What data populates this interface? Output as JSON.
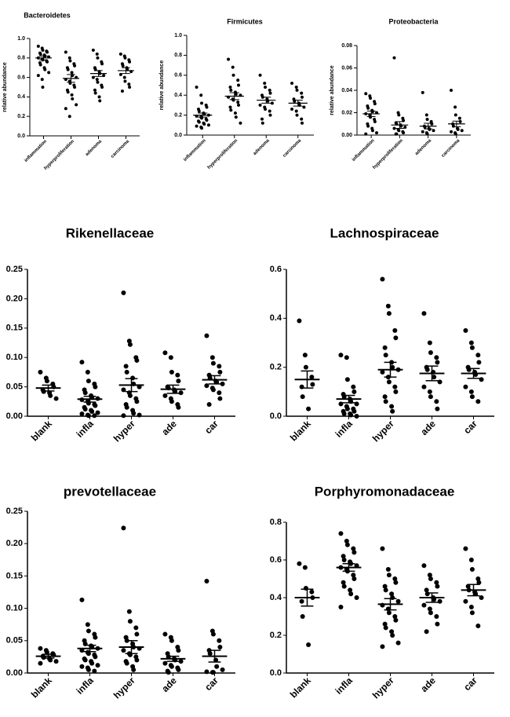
{
  "chart_data": [
    {
      "type": "dot",
      "title": "Bacteroidetes",
      "ylabel": "relative abundance",
      "categories": [
        "inflammation",
        "hyperproliferation",
        "adenoma",
        "carcinoma"
      ],
      "ylim": [
        0,
        1
      ],
      "yticks": [
        {
          "value": 0,
          "label": "0.0"
        },
        0.2,
        0.4,
        0.6,
        0.8,
        {
          "value": 1,
          "label": "1.0"
        }
      ],
      "values": [
        [
          0.92,
          0.9,
          0.88,
          0.87,
          0.86,
          0.85,
          0.84,
          0.83,
          0.82,
          0.81,
          0.8,
          0.79,
          0.78,
          0.77,
          0.76,
          0.75,
          0.73,
          0.7,
          0.68,
          0.65,
          0.62,
          0.58,
          0.5
        ],
        [
          0.86,
          0.8,
          0.77,
          0.74,
          0.72,
          0.7,
          0.68,
          0.65,
          0.62,
          0.6,
          0.58,
          0.56,
          0.54,
          0.52,
          0.5,
          0.47,
          0.45,
          0.42,
          0.38,
          0.32,
          0.28,
          0.2
        ],
        [
          0.88,
          0.84,
          0.8,
          0.76,
          0.74,
          0.7,
          0.68,
          0.66,
          0.64,
          0.62,
          0.6,
          0.58,
          0.55,
          0.52,
          0.5,
          0.47,
          0.44,
          0.4,
          0.36
        ],
        [
          0.84,
          0.82,
          0.8,
          0.78,
          0.76,
          0.74,
          0.72,
          0.7,
          0.68,
          0.66,
          0.63,
          0.6,
          0.56,
          0.53,
          0.5,
          0.46
        ]
      ],
      "means": [
        0.8,
        0.59,
        0.64,
        0.67
      ],
      "sem": [
        0.02,
        0.04,
        0.03,
        0.03
      ]
    },
    {
      "type": "dot",
      "title": "Firmicutes",
      "ylabel": "relative abundance",
      "categories": [
        "inflammation",
        "hyperproliferation",
        "adenoma",
        "carcinoma"
      ],
      "ylim": [
        0,
        1
      ],
      "yticks": [
        {
          "value": 0,
          "label": "0.0"
        },
        0.2,
        0.4,
        0.6,
        0.8,
        {
          "value": 1,
          "label": "1.0"
        }
      ],
      "values": [
        [
          0.48,
          0.4,
          0.32,
          0.3,
          0.28,
          0.26,
          0.24,
          0.22,
          0.21,
          0.2,
          0.19,
          0.18,
          0.17,
          0.16,
          0.15,
          0.14,
          0.13,
          0.12,
          0.11,
          0.1,
          0.09,
          0.08,
          0.07
        ],
        [
          0.76,
          0.68,
          0.6,
          0.55,
          0.5,
          0.48,
          0.45,
          0.43,
          0.41,
          0.4,
          0.38,
          0.36,
          0.35,
          0.33,
          0.3,
          0.28,
          0.25,
          0.22,
          0.18,
          0.12
        ],
        [
          0.6,
          0.52,
          0.48,
          0.45,
          0.42,
          0.4,
          0.38,
          0.36,
          0.34,
          0.32,
          0.3,
          0.28,
          0.26,
          0.24,
          0.2,
          0.16,
          0.12
        ],
        [
          0.52,
          0.48,
          0.45,
          0.42,
          0.38,
          0.36,
          0.34,
          0.32,
          0.3,
          0.28,
          0.26,
          0.24,
          0.2,
          0.16,
          0.12
        ]
      ],
      "means": [
        0.2,
        0.39,
        0.35,
        0.32
      ],
      "sem": [
        0.02,
        0.035,
        0.03,
        0.03
      ]
    },
    {
      "type": "dot",
      "title": "Proteobacteria",
      "ylabel": "relative abundance",
      "categories": [
        "inflammation",
        "hyperproliferation",
        "adenoma",
        "carcinoma"
      ],
      "ylim": [
        0,
        0.08
      ],
      "yticks": [
        {
          "value": 0,
          "label": "0.00"
        },
        0.02,
        0.04,
        0.06,
        0.08
      ],
      "values": [
        [
          0.037,
          0.035,
          0.033,
          0.03,
          0.028,
          0.026,
          0.024,
          0.022,
          0.021,
          0.02,
          0.019,
          0.018,
          0.016,
          0.014,
          0.012,
          0.01,
          0.008,
          0.006,
          0.004,
          0.002,
          0.001
        ],
        [
          0.069,
          0.02,
          0.018,
          0.015,
          0.013,
          0.011,
          0.01,
          0.009,
          0.008,
          0.007,
          0.006,
          0.005,
          0.004,
          0.003,
          0.002,
          0.001,
          0.001
        ],
        [
          0.038,
          0.018,
          0.014,
          0.012,
          0.01,
          0.008,
          0.007,
          0.006,
          0.005,
          0.004,
          0.003,
          0.002,
          0.001
        ],
        [
          0.04,
          0.025,
          0.018,
          0.015,
          0.012,
          0.01,
          0.008,
          0.006,
          0.005,
          0.004,
          0.003,
          0.002,
          0.001
        ]
      ],
      "means": [
        0.019,
        0.009,
        0.008,
        0.01
      ],
      "sem": [
        0.0025,
        0.003,
        0.0025,
        0.0025
      ]
    },
    {
      "type": "dot",
      "title": "Rikenellaceae",
      "categories": [
        "blank",
        "infla",
        "hyper",
        "ade",
        "car"
      ],
      "ylim": [
        0,
        0.25
      ],
      "yticks": [
        {
          "value": 0,
          "label": "0.00"
        },
        0.05,
        {
          "value": 0.1,
          "label": "0.10"
        },
        0.15,
        {
          "value": 0.2,
          "label": "0.20"
        },
        0.25
      ],
      "values": [
        [
          0.075,
          0.065,
          0.06,
          0.055,
          0.05,
          0.045,
          0.042,
          0.04,
          0.035,
          0.03
        ],
        [
          0.092,
          0.075,
          0.06,
          0.055,
          0.05,
          0.045,
          0.04,
          0.035,
          0.032,
          0.03,
          0.028,
          0.025,
          0.022,
          0.02,
          0.018,
          0.015,
          0.012,
          0.01,
          0.008,
          0.006,
          0.004,
          0.002,
          0.001,
          0.001
        ],
        [
          0.21,
          0.128,
          0.122,
          0.1,
          0.095,
          0.085,
          0.075,
          0.065,
          0.055,
          0.05,
          0.045,
          0.04,
          0.035,
          0.03,
          0.025,
          0.02,
          0.015,
          0.01,
          0.005,
          0.002,
          0.001
        ],
        [
          0.108,
          0.1,
          0.075,
          0.07,
          0.06,
          0.05,
          0.048,
          0.045,
          0.042,
          0.04,
          0.035,
          0.03,
          0.025,
          0.02,
          0.015
        ],
        [
          0.137,
          0.1,
          0.09,
          0.085,
          0.075,
          0.07,
          0.065,
          0.06,
          0.058,
          0.055,
          0.052,
          0.048,
          0.045,
          0.04,
          0.03,
          0.02
        ]
      ],
      "means": [
        0.048,
        0.029,
        0.053,
        0.046,
        0.062
      ],
      "sem": [
        0.005,
        0.005,
        0.011,
        0.007,
        0.007
      ]
    },
    {
      "type": "dot",
      "title": "Lachnospiraceae",
      "categories": [
        "blank",
        "infla",
        "hyper",
        "ade",
        "car"
      ],
      "ylim": [
        0,
        0.6
      ],
      "yticks": [
        {
          "value": 0,
          "label": "0.0"
        },
        0.2,
        0.4,
        0.6
      ],
      "values": [
        [
          0.39,
          0.25,
          0.2,
          0.16,
          0.13,
          0.12,
          0.08,
          0.03
        ],
        [
          0.25,
          0.24,
          0.15,
          0.12,
          0.1,
          0.09,
          0.08,
          0.07,
          0.06,
          0.05,
          0.05,
          0.04,
          0.03,
          0.03,
          0.02,
          0.02,
          0.01,
          0.01,
          0.005,
          0
        ],
        [
          0.56,
          0.45,
          0.42,
          0.35,
          0.32,
          0.28,
          0.25,
          0.22,
          0.2,
          0.19,
          0.18,
          0.16,
          0.14,
          0.12,
          0.1,
          0.08,
          0.06,
          0.04,
          0.02
        ],
        [
          0.42,
          0.3,
          0.26,
          0.24,
          0.22,
          0.2,
          0.19,
          0.18,
          0.16,
          0.14,
          0.12,
          0.1,
          0.08,
          0.06,
          0.03
        ],
        [
          0.35,
          0.3,
          0.28,
          0.25,
          0.22,
          0.2,
          0.19,
          0.18,
          0.17,
          0.15,
          0.12,
          0.1,
          0.08,
          0.06
        ]
      ],
      "means": [
        0.15,
        0.07,
        0.19,
        0.175,
        0.175
      ],
      "sem": [
        0.035,
        0.015,
        0.03,
        0.03,
        0.02
      ]
    },
    {
      "type": "dot",
      "title": "prevotellaceae",
      "categories": [
        "blank",
        "infla",
        "hyper",
        "ade",
        "car"
      ],
      "ylim": [
        0,
        0.25
      ],
      "yticks": [
        {
          "value": 0,
          "label": "0.00"
        },
        0.05,
        {
          "value": 0.1,
          "label": "0.10"
        },
        0.15,
        {
          "value": 0.2,
          "label": "0.20"
        },
        0.25
      ],
      "values": [
        [
          0.038,
          0.035,
          0.032,
          0.03,
          0.028,
          0.026,
          0.024,
          0.022,
          0.02,
          0.018,
          0.015
        ],
        [
          0.113,
          0.075,
          0.065,
          0.06,
          0.055,
          0.05,
          0.045,
          0.042,
          0.04,
          0.038,
          0.035,
          0.032,
          0.03,
          0.028,
          0.025,
          0.022,
          0.02,
          0.018,
          0.015,
          0.012,
          0.01,
          0.008,
          0.005,
          0.003
        ],
        [
          0.224,
          0.095,
          0.08,
          0.07,
          0.06,
          0.055,
          0.05,
          0.045,
          0.04,
          0.038,
          0.035,
          0.03,
          0.028,
          0.025,
          0.02,
          0.018,
          0.015,
          0.01,
          0.005
        ],
        [
          0.06,
          0.055,
          0.05,
          0.04,
          0.035,
          0.03,
          0.025,
          0.022,
          0.02,
          0.018,
          0.015,
          0.012,
          0.01,
          0.008,
          0.005,
          0.003,
          0.001
        ],
        [
          0.142,
          0.065,
          0.06,
          0.05,
          0.04,
          0.035,
          0.03,
          0.02,
          0.01,
          0.005,
          0.002,
          0.001,
          0.001
        ]
      ],
      "means": [
        0.026,
        0.038,
        0.04,
        0.022,
        0.026
      ],
      "sem": [
        0.003,
        0.005,
        0.01,
        0.004,
        0.009
      ]
    },
    {
      "type": "dot",
      "title": "Porphyromonadaceae",
      "categories": [
        "blank",
        "infla",
        "hyper",
        "ade",
        "car"
      ],
      "ylim": [
        0,
        0.8
      ],
      "yticks": [
        {
          "value": 0,
          "label": "0.0"
        },
        0.2,
        0.4,
        0.6,
        0.8
      ],
      "values": [
        [
          0.58,
          0.56,
          0.45,
          0.43,
          0.4,
          0.38,
          0.3,
          0.15
        ],
        [
          0.74,
          0.7,
          0.68,
          0.66,
          0.64,
          0.62,
          0.6,
          0.59,
          0.58,
          0.57,
          0.56,
          0.55,
          0.54,
          0.52,
          0.5,
          0.48,
          0.46,
          0.44,
          0.42,
          0.4,
          0.35
        ],
        [
          0.66,
          0.55,
          0.52,
          0.5,
          0.48,
          0.46,
          0.44,
          0.42,
          0.4,
          0.38,
          0.36,
          0.34,
          0.32,
          0.3,
          0.28,
          0.26,
          0.24,
          0.22,
          0.2,
          0.16,
          0.14
        ],
        [
          0.57,
          0.52,
          0.5,
          0.48,
          0.46,
          0.44,
          0.42,
          0.4,
          0.39,
          0.38,
          0.36,
          0.34,
          0.32,
          0.3,
          0.26,
          0.22
        ],
        [
          0.66,
          0.6,
          0.55,
          0.5,
          0.48,
          0.46,
          0.44,
          0.43,
          0.42,
          0.4,
          0.38,
          0.35,
          0.32,
          0.25
        ]
      ],
      "means": [
        0.4,
        0.56,
        0.365,
        0.4,
        0.44
      ],
      "sem": [
        0.045,
        0.02,
        0.03,
        0.025,
        0.03
      ]
    }
  ]
}
